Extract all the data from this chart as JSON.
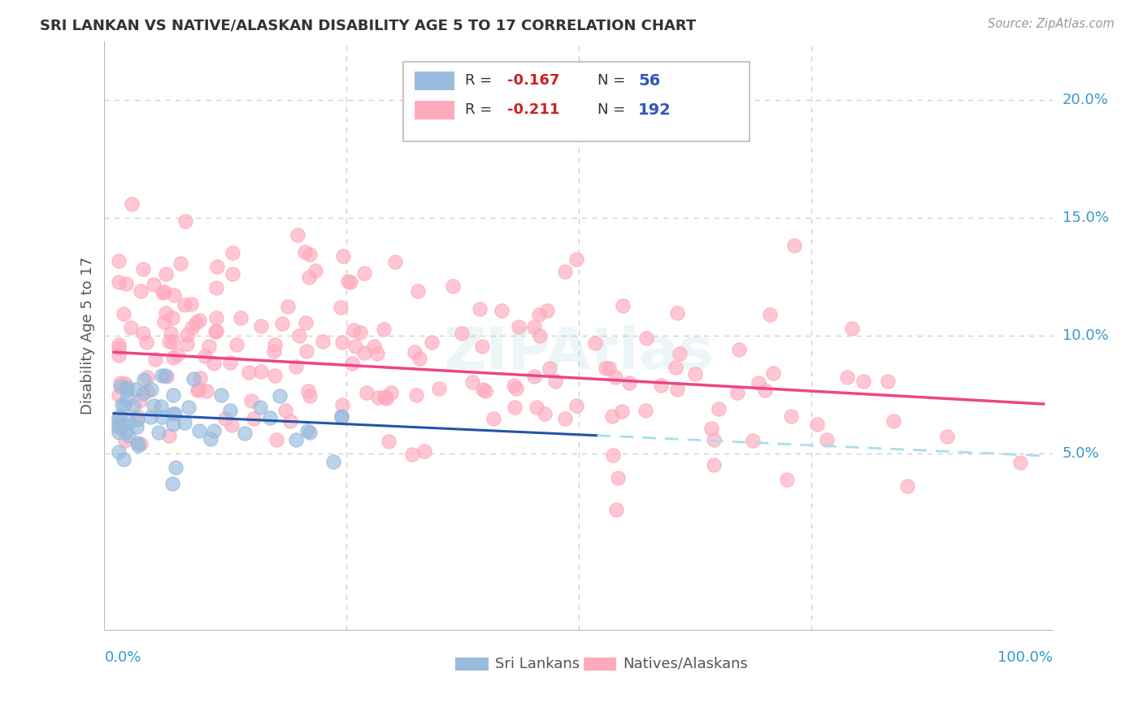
{
  "title": "SRI LANKAN VS NATIVE/ALASKAN DISABILITY AGE 5 TO 17 CORRELATION CHART",
  "source": "Source: ZipAtlas.com",
  "ylabel": "Disability Age 5 to 17",
  "legend_label1": "Sri Lankans",
  "legend_label2": "Natives/Alaskans",
  "ytick_labels": [
    "5.0%",
    "10.0%",
    "15.0%",
    "20.0%"
  ],
  "ytick_values": [
    0.05,
    0.1,
    0.15,
    0.2
  ],
  "xlim": [
    -0.01,
    1.01
  ],
  "ylim": [
    -0.025,
    0.225
  ],
  "blue_scatter_color": "#99BBDD",
  "pink_scatter_color": "#FFAABC",
  "blue_line_color": "#2255AA",
  "pink_line_color": "#EE4488",
  "dashed_line_color": "#AADDEE",
  "background_color": "#FFFFFF",
  "grid_color": "#CCCCCC",
  "title_color": "#333333",
  "axis_label_color": "#555555",
  "tick_label_color": "#3399CC",
  "legend_r_color": "#CC2222",
  "legend_n_color": "#3355BB",
  "watermark_color": "#99CCDD",
  "sri_slope": -0.018,
  "sri_intercept": 0.067,
  "nat_slope": -0.022,
  "nat_intercept": 0.093
}
